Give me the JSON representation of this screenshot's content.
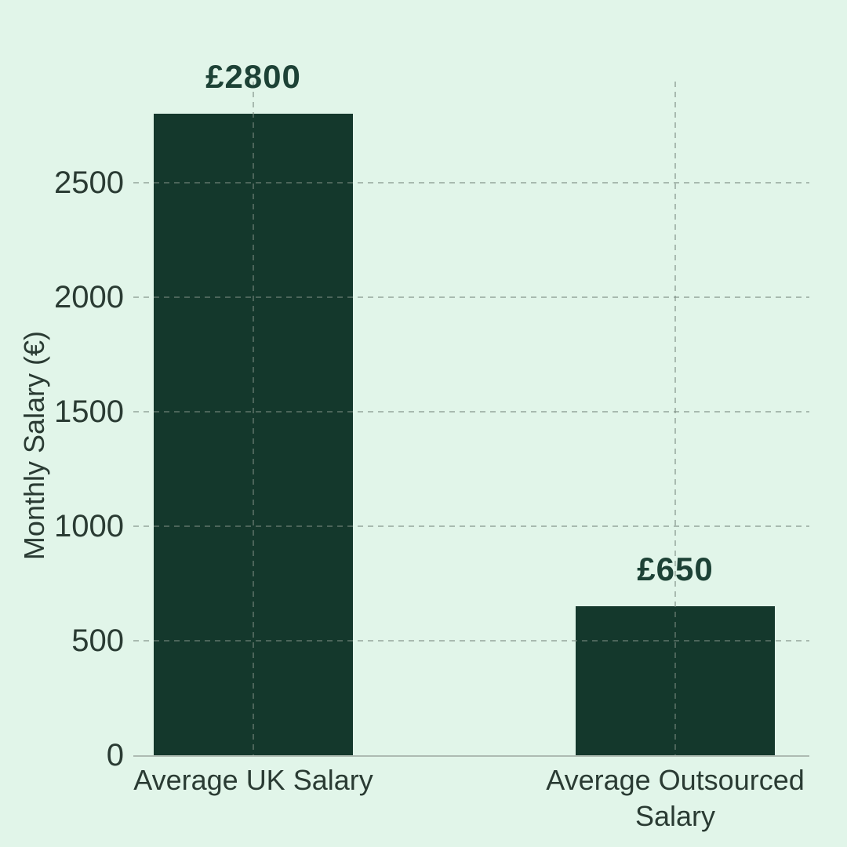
{
  "chart_data": {
    "type": "bar",
    "categories": [
      "Average UK Salary",
      "Average Outsourced Salary"
    ],
    "values": [
      2800,
      650
    ],
    "bar_labels": [
      "£2800",
      "£650"
    ],
    "title": "",
    "xlabel": "",
    "ylabel": "Monthly Salary (€)",
    "yticks": [
      0,
      500,
      1000,
      1500,
      2000,
      2500
    ],
    "ylim": [
      0,
      2940
    ],
    "grid": true,
    "grid_style": "dashed",
    "legend": "none",
    "colors": {
      "background": "#e1f5e9",
      "bar": "#14382c",
      "value_label": "#1d4236",
      "tick_text": "#2a3b33",
      "gridline": "rgba(122,138,128,0.55)",
      "axis_line": "#aebbb2"
    }
  }
}
